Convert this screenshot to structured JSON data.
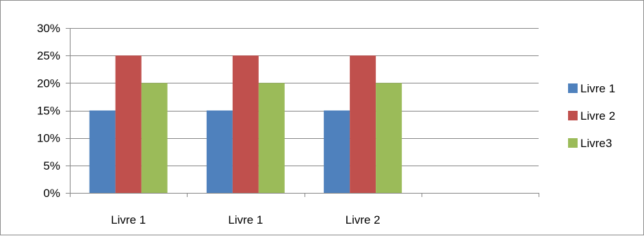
{
  "chart_data": {
    "type": "bar",
    "categories": [
      "Livre 1",
      "Livre 1",
      "Livre 2",
      ""
    ],
    "series": [
      {
        "name": "Livre 1",
        "color": "#4f81bd",
        "values": [
          0.15,
          0.15,
          0.15,
          null
        ]
      },
      {
        "name": "Livre 2",
        "color": "#c0504d",
        "values": [
          0.25,
          0.25,
          0.25,
          null
        ]
      },
      {
        "name": "Livre3",
        "color": "#9bbb59",
        "values": [
          0.2,
          0.2,
          0.2,
          null
        ]
      }
    ],
    "title": "",
    "xlabel": "",
    "ylabel": "",
    "ylim": [
      0,
      0.3
    ],
    "yticks": [
      0,
      0.05,
      0.1,
      0.15,
      0.2,
      0.25,
      0.3
    ],
    "ytick_labels": [
      "0%",
      "5%",
      "10%",
      "15%",
      "20%",
      "25%",
      "30%"
    ],
    "grid": true,
    "legend_position": "right",
    "gridline_color": "#868686",
    "axis_color": "#868686"
  }
}
